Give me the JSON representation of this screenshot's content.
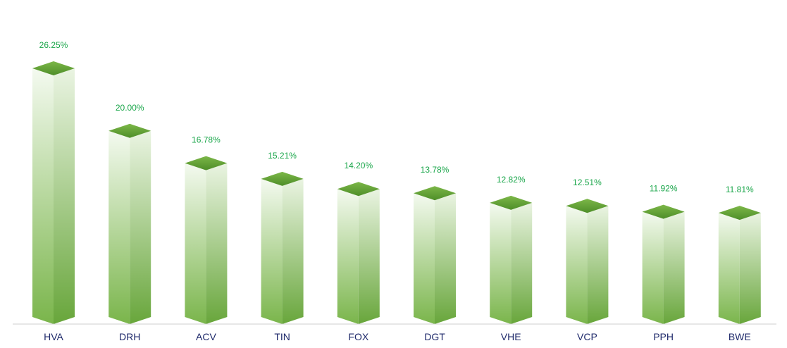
{
  "chart_data": {
    "type": "bar",
    "categories": [
      "HVA",
      "DRH",
      "ACV",
      "TIN",
      "FOX",
      "DGT",
      "VHE",
      "VCP",
      "PPH",
      "BWE"
    ],
    "values": [
      26.25,
      20.0,
      16.78,
      15.21,
      14.2,
      13.78,
      12.82,
      12.51,
      11.92,
      11.81
    ],
    "value_labels": [
      "26.25%",
      "20.00%",
      "16.78%",
      "15.21%",
      "14.20%",
      "13.78%",
      "12.82%",
      "12.51%",
      "11.92%",
      "11.81%"
    ],
    "ylim": [
      0,
      26.25
    ],
    "style": "3d-column",
    "grid": false,
    "legend": "none",
    "colors": {
      "top_face": "#6aaa3a",
      "top_face_dark": "#4f8f2a",
      "front_light": "#f3f9ef",
      "front_dark": "#78b14a",
      "side_light": "#e9f3e1",
      "side_dark": "#6aa63d",
      "value_label": "#1aa64a",
      "category_label": "#1f2a6b",
      "axis_line": "#cfcfcf"
    }
  }
}
